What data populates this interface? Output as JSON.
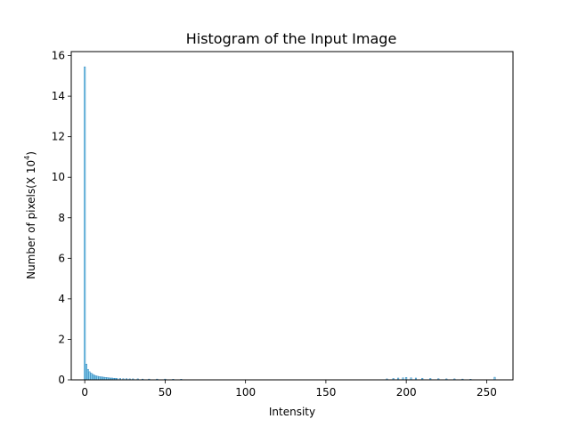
{
  "chart_data": {
    "type": "bar",
    "title": "Histogram of the Input Image",
    "xlabel": "Intensity",
    "ylabel": {
      "prefix": "Number of pixels(X 10",
      "superscript": "4",
      "suffix": ")"
    },
    "xlim": [
      -8.4,
      266.4
    ],
    "ylim": [
      0,
      16.2
    ],
    "xticks": [
      0,
      50,
      100,
      150,
      200,
      250
    ],
    "yticks": [
      0,
      2,
      4,
      6,
      8,
      10,
      12,
      14,
      16
    ],
    "grid": false,
    "colors": {
      "bar": "#87ceeb",
      "edge": "#1f77b4"
    },
    "x": [
      0,
      1,
      2,
      3,
      4,
      5,
      6,
      7,
      8,
      9,
      10,
      11,
      12,
      13,
      14,
      15,
      16,
      17,
      18,
      19,
      20,
      22,
      24,
      26,
      28,
      30,
      33,
      36,
      40,
      45,
      50,
      55,
      60,
      188,
      192,
      195,
      198,
      200,
      203,
      206,
      210,
      215,
      220,
      225,
      230,
      235,
      240,
      255
    ],
    "values": [
      15.45,
      0.78,
      0.52,
      0.4,
      0.33,
      0.27,
      0.23,
      0.2,
      0.18,
      0.16,
      0.15,
      0.14,
      0.13,
      0.12,
      0.11,
      0.1,
      0.09,
      0.09,
      0.08,
      0.08,
      0.07,
      0.07,
      0.06,
      0.06,
      0.05,
      0.05,
      0.05,
      0.04,
      0.04,
      0.04,
      0.04,
      0.03,
      0.03,
      0.05,
      0.07,
      0.09,
      0.1,
      0.12,
      0.1,
      0.09,
      0.08,
      0.07,
      0.06,
      0.05,
      0.05,
      0.04,
      0.03,
      0.13
    ]
  }
}
